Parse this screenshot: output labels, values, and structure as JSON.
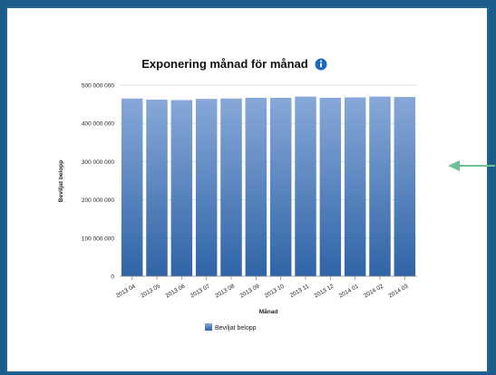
{
  "colors": {
    "background": "#1b5c88",
    "frame_border": "#1e6a96",
    "bar_top": "#87a8d8",
    "bar_bottom": "#2f64a6",
    "info_icon": "#1f67b8",
    "arrow": "#6dbf96"
  },
  "icons": [
    "info-icon",
    "arrow-left-icon"
  ],
  "chart_data": {
    "type": "bar",
    "title": "Exponering månad för månad",
    "xlabel": "Månad",
    "ylabel": "Beviljat belopp",
    "categories": [
      "2013 04",
      "2013 05",
      "2013 06",
      "2013 07",
      "2013 08",
      "2013 09",
      "2013 10",
      "2013 11",
      "2013 12",
      "2014 01",
      "2014 02",
      "2014 03"
    ],
    "series": [
      {
        "name": "Beviljat belopp",
        "values": [
          465000000,
          462000000,
          461000000,
          464000000,
          465000000,
          467000000,
          467000000,
          470000000,
          467000000,
          468000000,
          470000000,
          469000000
        ]
      }
    ],
    "ylim": [
      0,
      500000000
    ],
    "yticks": [
      "0",
      "100 000 000",
      "200 000 000",
      "300 000 000",
      "400 000 000",
      "500 000 000"
    ],
    "grid": true,
    "legend": "bottom"
  }
}
